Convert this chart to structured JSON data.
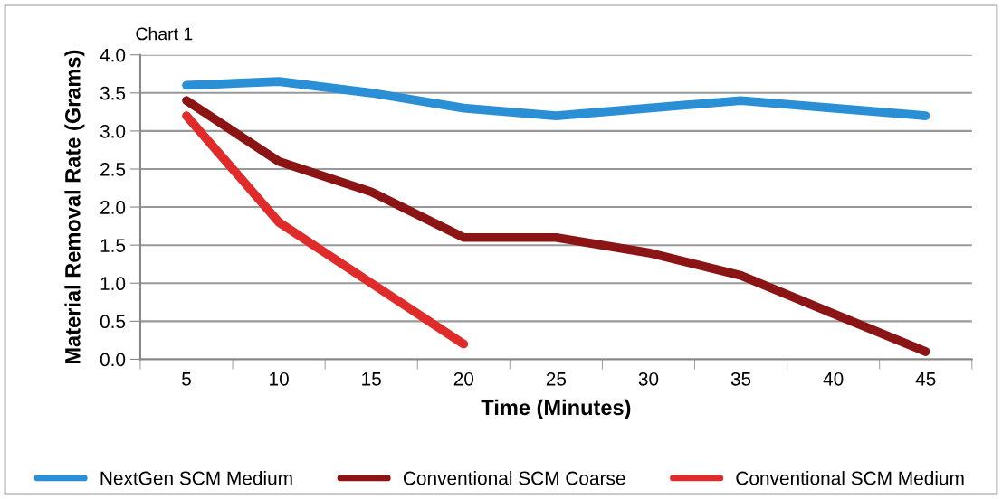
{
  "chart_data": {
    "type": "line",
    "title": "Chart 1",
    "xlabel": "Time (Minutes)",
    "ylabel": "Material Removal Rate (Grams)",
    "categories": [
      "5",
      "10",
      "15",
      "20",
      "25",
      "30",
      "35",
      "40",
      "45"
    ],
    "series": [
      {
        "name": "NextGen SCM Medium",
        "color": "#2a8fd4",
        "values": [
          3.6,
          3.65,
          3.5,
          3.3,
          3.2,
          3.3,
          3.4,
          3.3,
          3.2
        ]
      },
      {
        "name": "Conventional SCM Coarse",
        "color": "#8b1414",
        "values": [
          3.4,
          2.6,
          2.2,
          1.6,
          1.6,
          1.4,
          1.1,
          0.6,
          0.1
        ]
      },
      {
        "name": "Conventional SCM Medium",
        "color": "#e02b2b",
        "values": [
          3.2,
          1.8,
          1.0,
          0.2,
          null,
          null,
          null,
          null,
          null
        ]
      }
    ],
    "ylim": [
      0,
      4
    ],
    "yticks": [
      {
        "value": 0,
        "label": "0.0"
      },
      {
        "value": 0.5,
        "label": "0.5"
      },
      {
        "value": 1,
        "label": "1.0"
      },
      {
        "value": 1.5,
        "label": "1.5"
      },
      {
        "value": 2,
        "label": "2.0"
      },
      {
        "value": 2.5,
        "label": "2.5"
      },
      {
        "value": 3,
        "label": "3.0"
      },
      {
        "value": 3.5,
        "label": "3.5"
      },
      {
        "value": 4,
        "label": "4.0"
      }
    ],
    "grid": "y",
    "legend": "bottom",
    "marker": "none",
    "line_style": "solid"
  }
}
